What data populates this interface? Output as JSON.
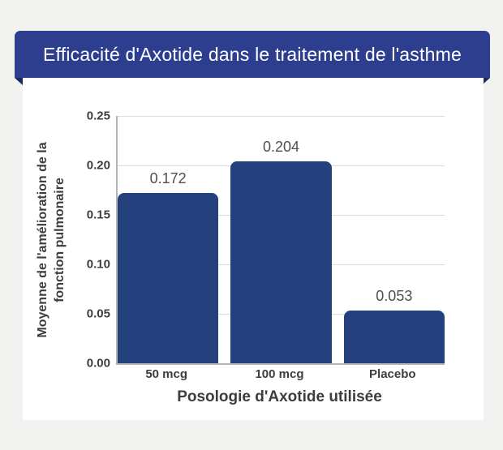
{
  "page": {
    "background": "#f2f2f0"
  },
  "banner": {
    "title": "Efficacité d'Axotide dans le traitement de l'asthme",
    "background": "#2d3e8f",
    "fold_color": "#1c2a60",
    "text_color": "#ffffff"
  },
  "chart_data": {
    "type": "bar",
    "categories": [
      "50 mcg",
      "100 mcg",
      "Placebo"
    ],
    "values": [
      0.172,
      0.204,
      0.053
    ],
    "value_labels": [
      "0.172",
      "0.204",
      "0.053"
    ],
    "xlabel": "Posologie d'Axotide utilisée",
    "ylabel_line1": "Moyenne de l'amélioration de la",
    "ylabel_line2": "fonction pulmonaire",
    "ylim": [
      0,
      0.25
    ],
    "yticks": [
      "0.00",
      "0.05",
      "0.10",
      "0.15",
      "0.20",
      "0.25"
    ],
    "grid": true,
    "legend": "none",
    "bar_color": "#24417d"
  }
}
